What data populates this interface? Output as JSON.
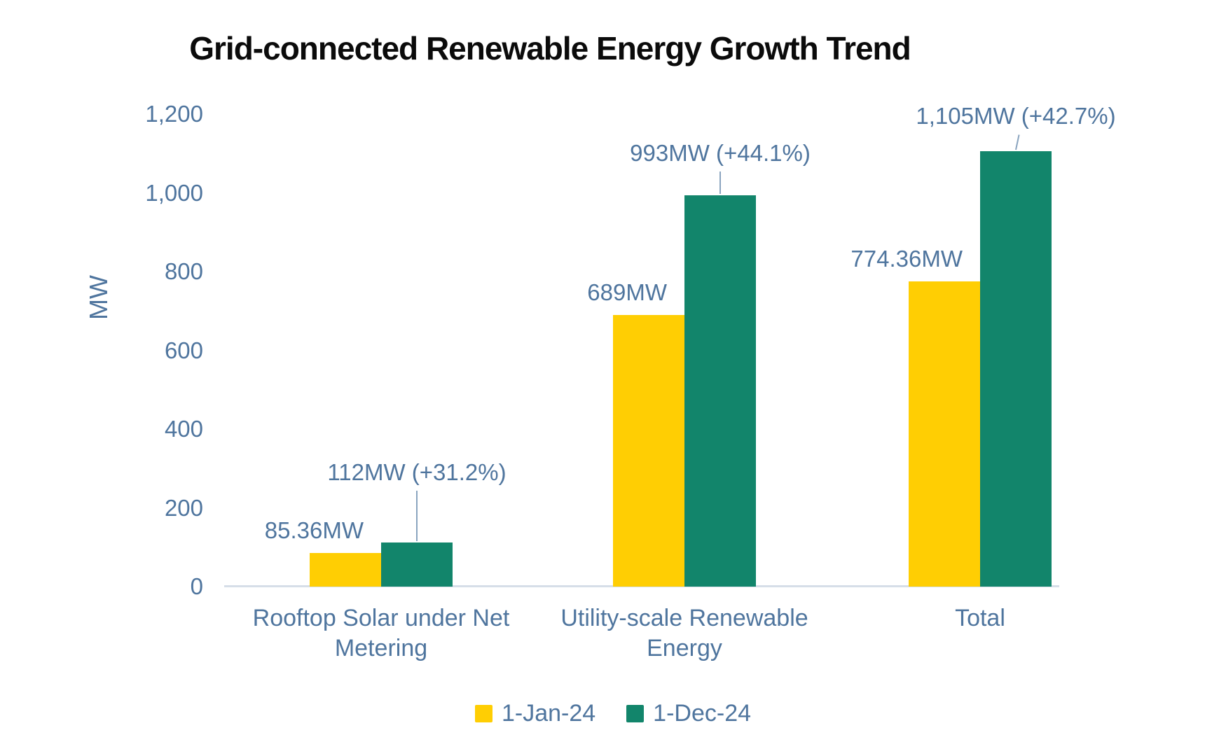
{
  "chart_data": {
    "type": "bar",
    "title": "Grid-connected Renewable Energy Growth Trend",
    "ylabel": "MW",
    "xlabel": "",
    "ylim": [
      0,
      1200
    ],
    "grid": false,
    "legend_position": "bottom",
    "yticks": [
      {
        "value": 0,
        "label": "0"
      },
      {
        "value": 200,
        "label": "200"
      },
      {
        "value": 400,
        "label": "400"
      },
      {
        "value": 600,
        "label": "600"
      },
      {
        "value": 800,
        "label": "800"
      },
      {
        "value": 1000,
        "label": "1,000"
      },
      {
        "value": 1200,
        "label": "1,200"
      }
    ],
    "categories": [
      "Rooftop Solar under Net Metering",
      "Utility-scale Renewable Energy",
      "Total"
    ],
    "series": [
      {
        "name": "1-Jan-24",
        "color": "#FFCE03",
        "values": [
          85.36,
          689,
          774.36
        ],
        "data_labels": [
          "85.36MW",
          "689MW",
          "774.36MW"
        ]
      },
      {
        "name": "1-Dec-24",
        "color": "#12856B",
        "values": [
          112,
          993,
          1105
        ],
        "data_labels": [
          "112MW (+31.2%)",
          "993MW (+44.1%)",
          "1,105MW (+42.7%)"
        ]
      }
    ],
    "colors": {
      "axis_text": "#4F759E",
      "title_text": "#0B0B0B",
      "baseline": "#D6DEE8",
      "leader_line": "#8AA4BF"
    }
  }
}
